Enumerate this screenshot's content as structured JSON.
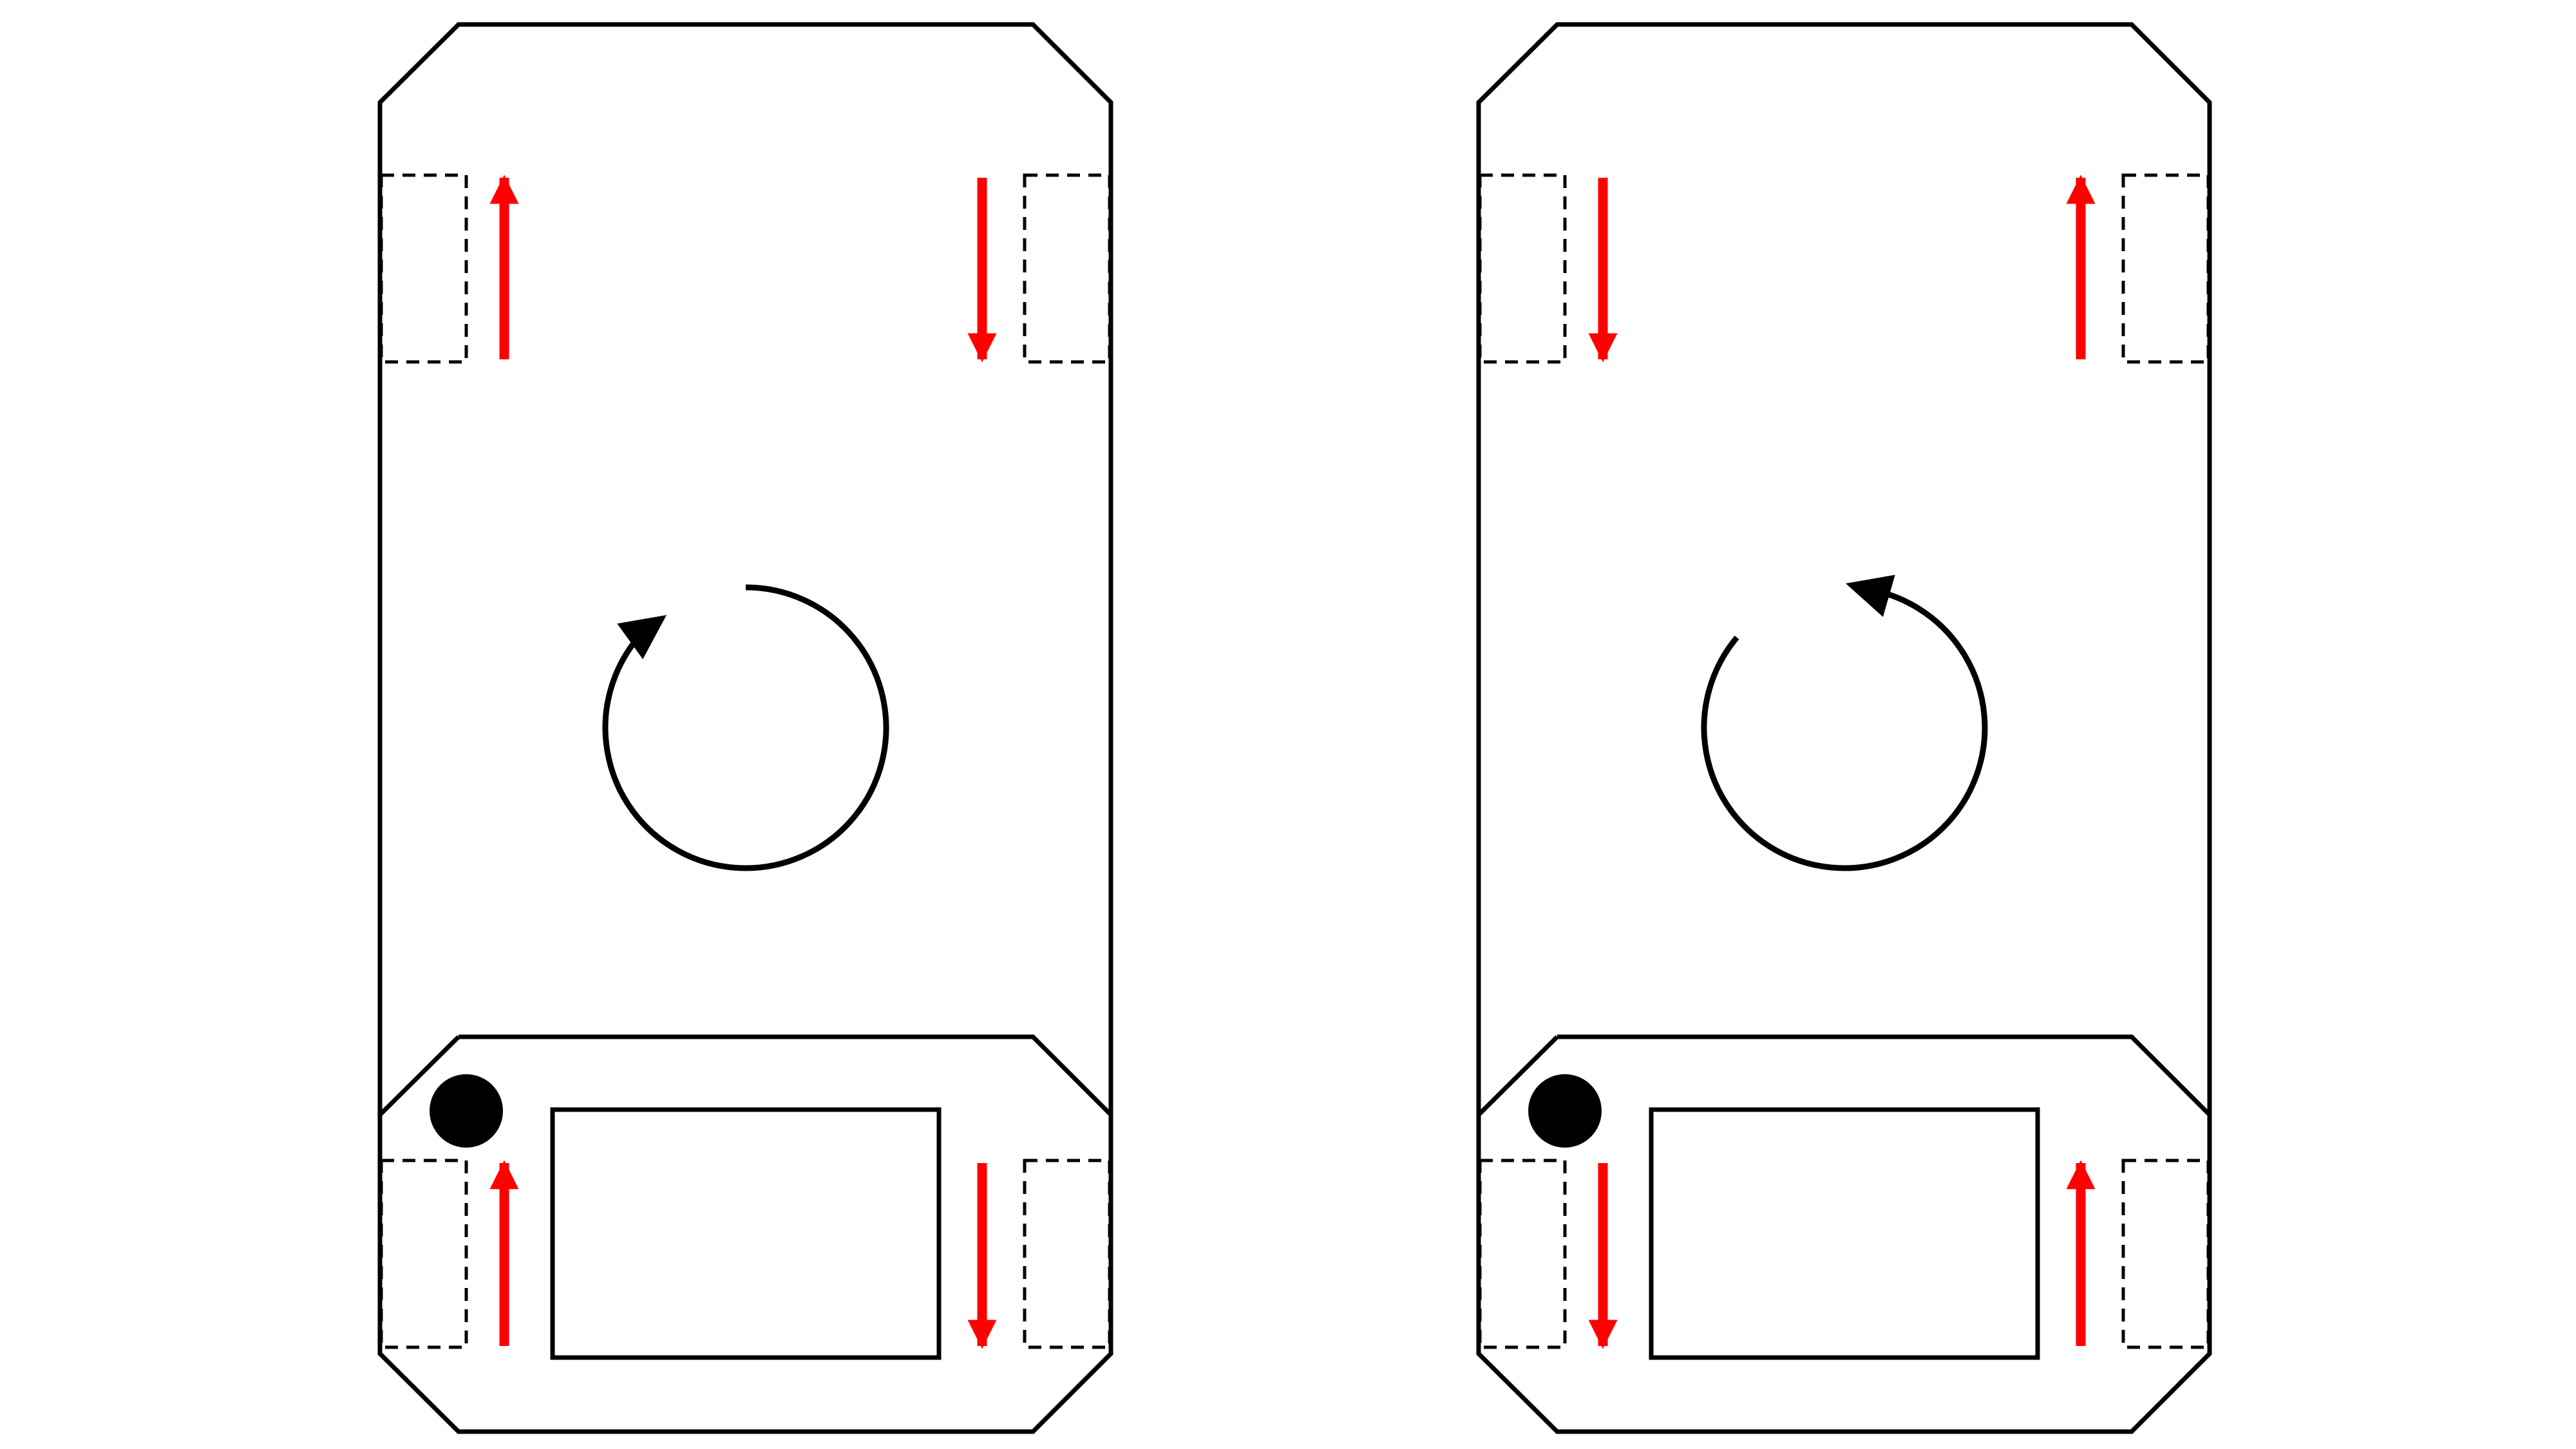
{
  "colors": {
    "outline": "#000000",
    "arrow": "#ff0000",
    "background": "#ffffff"
  },
  "panels": [
    {
      "name": "left",
      "rotation": "clockwise",
      "wheels": {
        "front_left": "up",
        "front_right": "down",
        "rear_left": "up",
        "rear_right": "down"
      }
    },
    {
      "name": "right",
      "rotation": "counterclockwise",
      "wheels": {
        "front_left": "down",
        "front_right": "up",
        "rear_left": "down",
        "rear_right": "up"
      }
    }
  ]
}
